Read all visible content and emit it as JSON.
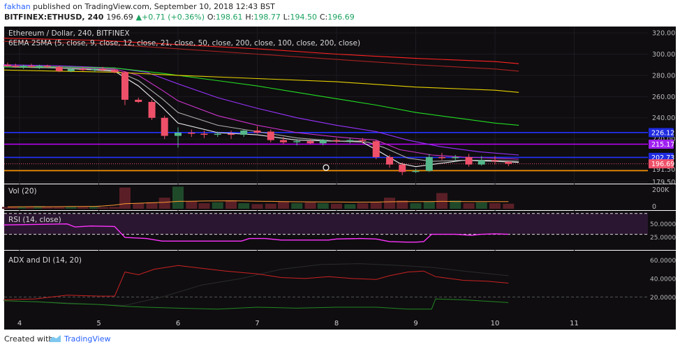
{
  "header": {
    "author": "fakhan",
    "published": " published on TradingView.com, September 10, 2018 12:43 BST",
    "symbol": "BITFINEX:ETHUSD, 240",
    "last": "196.69",
    "change": "+0.71 (+0.36%)",
    "o_label": "O:",
    "o": "198.61",
    "h_label": "H:",
    "h": "198.77",
    "l_label": "L:",
    "l": "194.50",
    "c_label": "C:",
    "c": "196.69"
  },
  "chart_data": {
    "type": "candlestick",
    "title": "Ethereum / Dollar, 240, BITFINEX",
    "subtitle": "6EMA 2SMA (5, close, 9, close, 12, close, 21, close, 50, close, 200, close, 100, close, 200, close)",
    "y_ticks": [
      "320.00",
      "300.00",
      "280.00",
      "260.00",
      "240.00",
      "220.00",
      "191.50",
      "179.50"
    ],
    "ylim": [
      178,
      326
    ],
    "x_ticks": [
      "4",
      "5",
      "6",
      "7",
      "8",
      "9",
      "10",
      "11"
    ],
    "price_tags": [
      {
        "label": "226.12",
        "price": 226.12,
        "color": "#1f2be0"
      },
      {
        "label": "215.17",
        "price": 215.17,
        "color": "#a020f0"
      },
      {
        "label": "202.73",
        "price": 202.73,
        "color": "#1f2be0"
      },
      {
        "label": "196.69",
        "price": 196.69,
        "color": "#ef5069"
      }
    ],
    "hlines": [
      {
        "price": 226.12,
        "color": "#2233ff",
        "style": "solid"
      },
      {
        "price": 215.17,
        "color": "#c000ff",
        "style": "solid"
      },
      {
        "price": 202.73,
        "color": "#2233ff",
        "style": "solid"
      },
      {
        "price": 196.69,
        "color": "#ef5069",
        "style": "dotted"
      },
      {
        "price": 190.2,
        "color": "#ff9800",
        "style": "solid"
      }
    ],
    "candles": [
      {
        "x": 3.85,
        "o": 290,
        "h": 292,
        "l": 288,
        "c": 289
      },
      {
        "x": 3.95,
        "o": 289,
        "h": 291,
        "l": 287,
        "c": 288
      },
      {
        "x": 4.05,
        "o": 288,
        "h": 290,
        "l": 286,
        "c": 289
      },
      {
        "x": 4.15,
        "o": 289,
        "h": 291,
        "l": 287,
        "c": 288
      },
      {
        "x": 4.25,
        "o": 288,
        "h": 290,
        "l": 286,
        "c": 289
      },
      {
        "x": 4.35,
        "o": 289,
        "h": 290,
        "l": 287,
        "c": 288
      },
      {
        "x": 4.5,
        "o": 288,
        "h": 289,
        "l": 283,
        "c": 284
      },
      {
        "x": 4.65,
        "o": 284,
        "h": 287,
        "l": 283,
        "c": 286
      },
      {
        "x": 4.8,
        "o": 286,
        "h": 288,
        "l": 284,
        "c": 285
      },
      {
        "x": 4.95,
        "o": 285,
        "h": 287,
        "l": 283,
        "c": 286
      },
      {
        "x": 5.05,
        "o": 286,
        "h": 288,
        "l": 284,
        "c": 285
      },
      {
        "x": 5.2,
        "o": 285,
        "h": 286,
        "l": 282,
        "c": 283
      },
      {
        "x": 5.33,
        "o": 283,
        "h": 284,
        "l": 252,
        "c": 257
      },
      {
        "x": 5.5,
        "o": 257,
        "h": 259,
        "l": 254,
        "c": 255
      },
      {
        "x": 5.67,
        "o": 255,
        "h": 257,
        "l": 238,
        "c": 240
      },
      {
        "x": 5.83,
        "o": 240,
        "h": 242,
        "l": 220,
        "c": 223
      },
      {
        "x": 6.0,
        "o": 223,
        "h": 231,
        "l": 212,
        "c": 226
      },
      {
        "x": 6.17,
        "o": 226,
        "h": 229,
        "l": 222,
        "c": 225
      },
      {
        "x": 6.33,
        "o": 225,
        "h": 228,
        "l": 221,
        "c": 224
      },
      {
        "x": 6.5,
        "o": 224,
        "h": 227,
        "l": 222,
        "c": 225
      },
      {
        "x": 6.67,
        "o": 225,
        "h": 228,
        "l": 220,
        "c": 224
      },
      {
        "x": 6.83,
        "o": 224,
        "h": 229,
        "l": 222,
        "c": 228
      },
      {
        "x": 7.0,
        "o": 228,
        "h": 232,
        "l": 225,
        "c": 226
      },
      {
        "x": 7.17,
        "o": 227,
        "h": 229,
        "l": 217,
        "c": 219
      },
      {
        "x": 7.33,
        "o": 219,
        "h": 222,
        "l": 215,
        "c": 217
      },
      {
        "x": 7.5,
        "o": 217,
        "h": 220,
        "l": 214,
        "c": 218
      },
      {
        "x": 7.67,
        "o": 218,
        "h": 220,
        "l": 215,
        "c": 216
      },
      {
        "x": 7.83,
        "o": 216,
        "h": 220,
        "l": 214,
        "c": 219
      },
      {
        "x": 8.0,
        "o": 219,
        "h": 221,
        "l": 216,
        "c": 218
      },
      {
        "x": 8.17,
        "o": 218,
        "h": 221,
        "l": 216,
        "c": 219
      },
      {
        "x": 8.33,
        "o": 219,
        "h": 221,
        "l": 216,
        "c": 218
      },
      {
        "x": 8.5,
        "o": 218,
        "h": 219,
        "l": 201,
        "c": 203
      },
      {
        "x": 8.67,
        "o": 203,
        "h": 205,
        "l": 193,
        "c": 196
      },
      {
        "x": 8.83,
        "o": 196,
        "h": 198,
        "l": 186,
        "c": 189
      },
      {
        "x": 9.0,
        "o": 189,
        "h": 192,
        "l": 188,
        "c": 190
      },
      {
        "x": 9.17,
        "o": 190,
        "h": 206,
        "l": 189,
        "c": 203
      },
      {
        "x": 9.33,
        "o": 203,
        "h": 207,
        "l": 200,
        "c": 202
      },
      {
        "x": 9.5,
        "o": 202,
        "h": 205,
        "l": 199,
        "c": 203
      },
      {
        "x": 9.67,
        "o": 203,
        "h": 206,
        "l": 194,
        "c": 196
      },
      {
        "x": 9.83,
        "o": 196,
        "h": 204,
        "l": 195,
        "c": 200
      },
      {
        "x": 10.0,
        "o": 200,
        "h": 204,
        "l": 196,
        "c": 199
      },
      {
        "x": 10.17,
        "o": 198.61,
        "h": 198.77,
        "l": 194.5,
        "c": 196.69
      }
    ],
    "ma_lines": [
      {
        "color": "#f0f0f0",
        "points": [
          [
            3.8,
            288
          ],
          [
            4.5,
            287
          ],
          [
            5.2,
            284
          ],
          [
            5.5,
            270
          ],
          [
            5.8,
            250
          ],
          [
            6.0,
            235
          ],
          [
            6.5,
            226
          ],
          [
            7.0,
            224
          ],
          [
            7.5,
            219
          ],
          [
            8.0,
            218
          ],
          [
            8.3,
            218
          ],
          [
            8.5,
            210
          ],
          [
            8.8,
            197
          ],
          [
            9.0,
            194
          ],
          [
            9.3,
            197
          ],
          [
            9.6,
            200
          ],
          [
            10.0,
            199
          ],
          [
            10.3,
            198
          ]
        ]
      },
      {
        "color": "#b0b0b0",
        "points": [
          [
            3.8,
            288
          ],
          [
            4.5,
            287
          ],
          [
            5.2,
            285
          ],
          [
            5.5,
            275
          ],
          [
            5.8,
            258
          ],
          [
            6.0,
            245
          ],
          [
            6.5,
            233
          ],
          [
            7.0,
            227
          ],
          [
            7.5,
            221
          ],
          [
            8.0,
            218
          ],
          [
            8.4,
            217
          ],
          [
            8.6,
            212
          ],
          [
            8.9,
            202
          ],
          [
            9.2,
            199
          ],
          [
            9.6,
            200
          ],
          [
            10.0,
            200
          ],
          [
            10.3,
            199
          ]
        ]
      },
      {
        "color": "#cc33cc",
        "points": [
          [
            3.8,
            289
          ],
          [
            4.5,
            288
          ],
          [
            5.2,
            286
          ],
          [
            5.5,
            280
          ],
          [
            5.8,
            266
          ],
          [
            6.0,
            256
          ],
          [
            6.5,
            242
          ],
          [
            7.0,
            233
          ],
          [
            7.5,
            226
          ],
          [
            8.0,
            222
          ],
          [
            8.5,
            219
          ],
          [
            8.8,
            210
          ],
          [
            9.2,
            205
          ],
          [
            9.6,
            203
          ],
          [
            10.0,
            202
          ],
          [
            10.3,
            201
          ]
        ]
      },
      {
        "color": "#9933ff",
        "points": [
          [
            3.8,
            290
          ],
          [
            4.5,
            289
          ],
          [
            5.2,
            287
          ],
          [
            5.6,
            283
          ],
          [
            6.0,
            272
          ],
          [
            6.5,
            259
          ],
          [
            7.0,
            249
          ],
          [
            7.5,
            240
          ],
          [
            8.0,
            233
          ],
          [
            8.5,
            227
          ],
          [
            8.9,
            219
          ],
          [
            9.3,
            213
          ],
          [
            9.8,
            208
          ],
          [
            10.3,
            205
          ]
        ]
      },
      {
        "color": "#22dd22",
        "points": [
          [
            3.8,
            288
          ],
          [
            4.5,
            288
          ],
          [
            5.2,
            287
          ],
          [
            5.8,
            282
          ],
          [
            6.5,
            275
          ],
          [
            7.0,
            270
          ],
          [
            7.5,
            264
          ],
          [
            8.0,
            258
          ],
          [
            8.5,
            252
          ],
          [
            9.0,
            245
          ],
          [
            9.5,
            240
          ],
          [
            10.0,
            235
          ],
          [
            10.3,
            233
          ]
        ]
      },
      {
        "color": "#e6d000",
        "points": [
          [
            3.8,
            285
          ],
          [
            4.5,
            284
          ],
          [
            5.2,
            283
          ],
          [
            6.0,
            280
          ],
          [
            7.0,
            277
          ],
          [
            8.0,
            274
          ],
          [
            9.0,
            269
          ],
          [
            10.0,
            266
          ],
          [
            10.3,
            264
          ]
        ]
      },
      {
        "color": "#ff2222",
        "points": [
          [
            3.8,
            315
          ],
          [
            5.0,
            313
          ],
          [
            6.0,
            309
          ],
          [
            7.0,
            305
          ],
          [
            8.0,
            300
          ],
          [
            9.0,
            296
          ],
          [
            10.0,
            293
          ],
          [
            10.3,
            291
          ]
        ]
      },
      {
        "color": "#aa2222",
        "points": [
          [
            3.8,
            312
          ],
          [
            5.0,
            310
          ],
          [
            6.0,
            305
          ],
          [
            7.0,
            300
          ],
          [
            8.0,
            295
          ],
          [
            9.0,
            290
          ],
          [
            10.0,
            286
          ],
          [
            10.3,
            284
          ]
        ]
      }
    ],
    "volume": {
      "label": "Vol (20)",
      "y_ticks": [
        "200K",
        "0"
      ],
      "ymax": 250,
      "bars": [
        20,
        25,
        18,
        22,
        30,
        20,
        18,
        22,
        20,
        25,
        18,
        20,
        230,
        60,
        70,
        120,
        240,
        80,
        60,
        70,
        90,
        60,
        50,
        55,
        80,
        60,
        70,
        60,
        55,
        50,
        60,
        70,
        120,
        90,
        60,
        80,
        170,
        90,
        60,
        70,
        60,
        55
      ],
      "ma": [
        20,
        21,
        22,
        23,
        22,
        22,
        23,
        24,
        25,
        26,
        30,
        40,
        55,
        60,
        65,
        70,
        80,
        82,
        84,
        85,
        86,
        84,
        82,
        80,
        78,
        76,
        75,
        74,
        74,
        72,
        72,
        73,
        76,
        78,
        78,
        78,
        80,
        79,
        78,
        78,
        77,
        77
      ]
    },
    "rsi": {
      "label": "RSI (14, close)",
      "y_ticks": [
        "50.0000",
        "25.0000"
      ],
      "ylim": [
        0,
        75
      ],
      "upper": 70,
      "lower": 30,
      "points": [
        [
          3.8,
          48
        ],
        [
          4.6,
          50
        ],
        [
          4.7,
          44
        ],
        [
          4.9,
          46
        ],
        [
          5.2,
          45
        ],
        [
          5.33,
          24
        ],
        [
          5.6,
          22
        ],
        [
          5.8,
          17
        ],
        [
          6.0,
          17
        ],
        [
          6.5,
          17
        ],
        [
          6.8,
          17
        ],
        [
          6.9,
          22
        ],
        [
          7.1,
          22
        ],
        [
          7.3,
          19
        ],
        [
          7.6,
          19
        ],
        [
          7.9,
          19
        ],
        [
          8.0,
          21
        ],
        [
          8.3,
          22
        ],
        [
          8.5,
          21
        ],
        [
          8.67,
          16
        ],
        [
          8.9,
          15
        ],
        [
          9.0,
          15
        ],
        [
          9.1,
          16
        ],
        [
          9.2,
          30
        ],
        [
          9.5,
          30
        ],
        [
          9.7,
          28
        ],
        [
          9.83,
          30
        ],
        [
          10.0,
          31
        ],
        [
          10.17,
          30
        ]
      ]
    },
    "adx": {
      "label": "ADX and DI (14, 20)",
      "y_ticks": [
        "60.0000",
        "40.0000",
        "20.0000"
      ],
      "ylim": [
        0,
        70
      ],
      "ref": 20,
      "adx": [
        [
          3.8,
          16
        ],
        [
          4.5,
          14
        ],
        [
          5.0,
          12
        ],
        [
          5.33,
          11
        ],
        [
          5.8,
          20
        ],
        [
          6.3,
          33
        ],
        [
          6.8,
          40
        ],
        [
          7.3,
          50
        ],
        [
          7.8,
          55
        ],
        [
          8.3,
          56
        ],
        [
          8.8,
          54
        ],
        [
          9.2,
          52
        ],
        [
          9.6,
          48
        ],
        [
          10.17,
          43
        ]
      ],
      "di_plus": [
        [
          3.8,
          16
        ],
        [
          4.2,
          15
        ],
        [
          4.6,
          13
        ],
        [
          5.0,
          12
        ],
        [
          5.33,
          10
        ],
        [
          5.6,
          9
        ],
        [
          6.0,
          8
        ],
        [
          6.5,
          7
        ],
        [
          7.0,
          9
        ],
        [
          7.5,
          8
        ],
        [
          8.0,
          9
        ],
        [
          8.5,
          9
        ],
        [
          8.9,
          7
        ],
        [
          9.2,
          7
        ],
        [
          9.25,
          18
        ],
        [
          9.6,
          17
        ],
        [
          10.17,
          14
        ]
      ],
      "di_minus": [
        [
          3.8,
          17
        ],
        [
          4.2,
          18
        ],
        [
          4.6,
          22
        ],
        [
          5.0,
          21
        ],
        [
          5.2,
          21
        ],
        [
          5.33,
          47
        ],
        [
          5.5,
          44
        ],
        [
          5.7,
          50
        ],
        [
          6.0,
          54
        ],
        [
          6.3,
          51
        ],
        [
          6.6,
          48
        ],
        [
          7.0,
          45
        ],
        [
          7.3,
          41
        ],
        [
          7.6,
          40
        ],
        [
          7.9,
          42
        ],
        [
          8.2,
          40
        ],
        [
          8.5,
          39
        ],
        [
          8.67,
          43
        ],
        [
          8.9,
          47
        ],
        [
          9.1,
          48
        ],
        [
          9.25,
          42
        ],
        [
          9.6,
          38
        ],
        [
          9.9,
          37
        ],
        [
          10.17,
          35
        ]
      ]
    }
  },
  "footer": {
    "created": "Created with",
    "brand": "TradingView"
  }
}
